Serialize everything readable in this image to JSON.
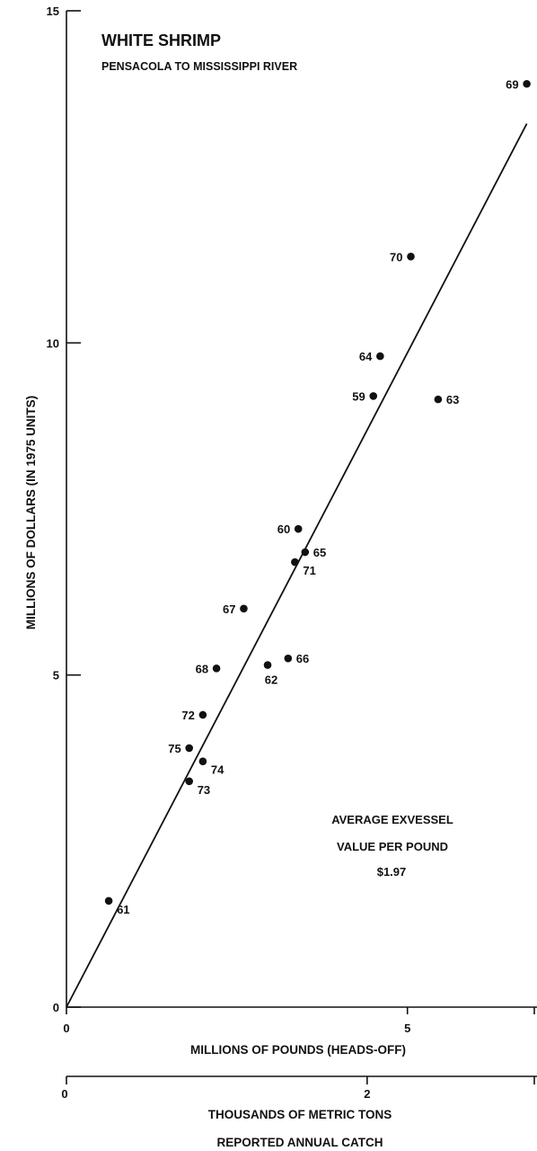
{
  "chart_data": {
    "type": "scatter",
    "title": "WHITE SHRIMP",
    "subtitle": "PENSACOLA TO MISSISSIPPI RIVER",
    "ylabel": "MILLIONS OF DOLLARS (IN 1975 UNITS)",
    "xlabel": "MILLIONS OF POUNDS (HEADS-OFF)",
    "x2label": "THOUSANDS OF METRIC TONS",
    "caption": "REPORTED ANNUAL CATCH",
    "ylim": [
      0,
      15
    ],
    "xlim": [
      0,
      6.9
    ],
    "x2lim": [
      0,
      3.13
    ],
    "yticks": [
      "0",
      "5",
      "10",
      "15"
    ],
    "xticks": [
      "0",
      "5"
    ],
    "x2ticks": [
      "0",
      "2"
    ],
    "points": [
      {
        "label": "61",
        "x": 0.62,
        "y": 1.6
      },
      {
        "label": "73",
        "x": 1.8,
        "y": 3.4
      },
      {
        "label": "75",
        "x": 1.8,
        "y": 3.9
      },
      {
        "label": "74",
        "x": 2.0,
        "y": 3.7
      },
      {
        "label": "72",
        "x": 2.0,
        "y": 4.4
      },
      {
        "label": "68",
        "x": 2.2,
        "y": 5.1
      },
      {
        "label": "67",
        "x": 2.6,
        "y": 6.0
      },
      {
        "label": "62",
        "x": 2.95,
        "y": 5.15
      },
      {
        "label": "66",
        "x": 3.25,
        "y": 5.25
      },
      {
        "label": "71",
        "x": 3.35,
        "y": 6.7
      },
      {
        "label": "60",
        "x": 3.4,
        "y": 7.2
      },
      {
        "label": "65",
        "x": 3.5,
        "y": 6.85
      },
      {
        "label": "59",
        "x": 4.5,
        "y": 9.2
      },
      {
        "label": "64",
        "x": 4.6,
        "y": 9.8
      },
      {
        "label": "63",
        "x": 5.45,
        "y": 9.15
      },
      {
        "label": "70",
        "x": 5.05,
        "y": 11.3
      },
      {
        "label": "69",
        "x": 6.75,
        "y": 13.9
      }
    ],
    "fit_line": {
      "x": [
        0,
        6.75
      ],
      "y": [
        0,
        13.3
      ]
    },
    "annotation": [
      "AVERAGE EXVESSEL",
      "VALUE PER POUND",
      "$1.97"
    ]
  }
}
